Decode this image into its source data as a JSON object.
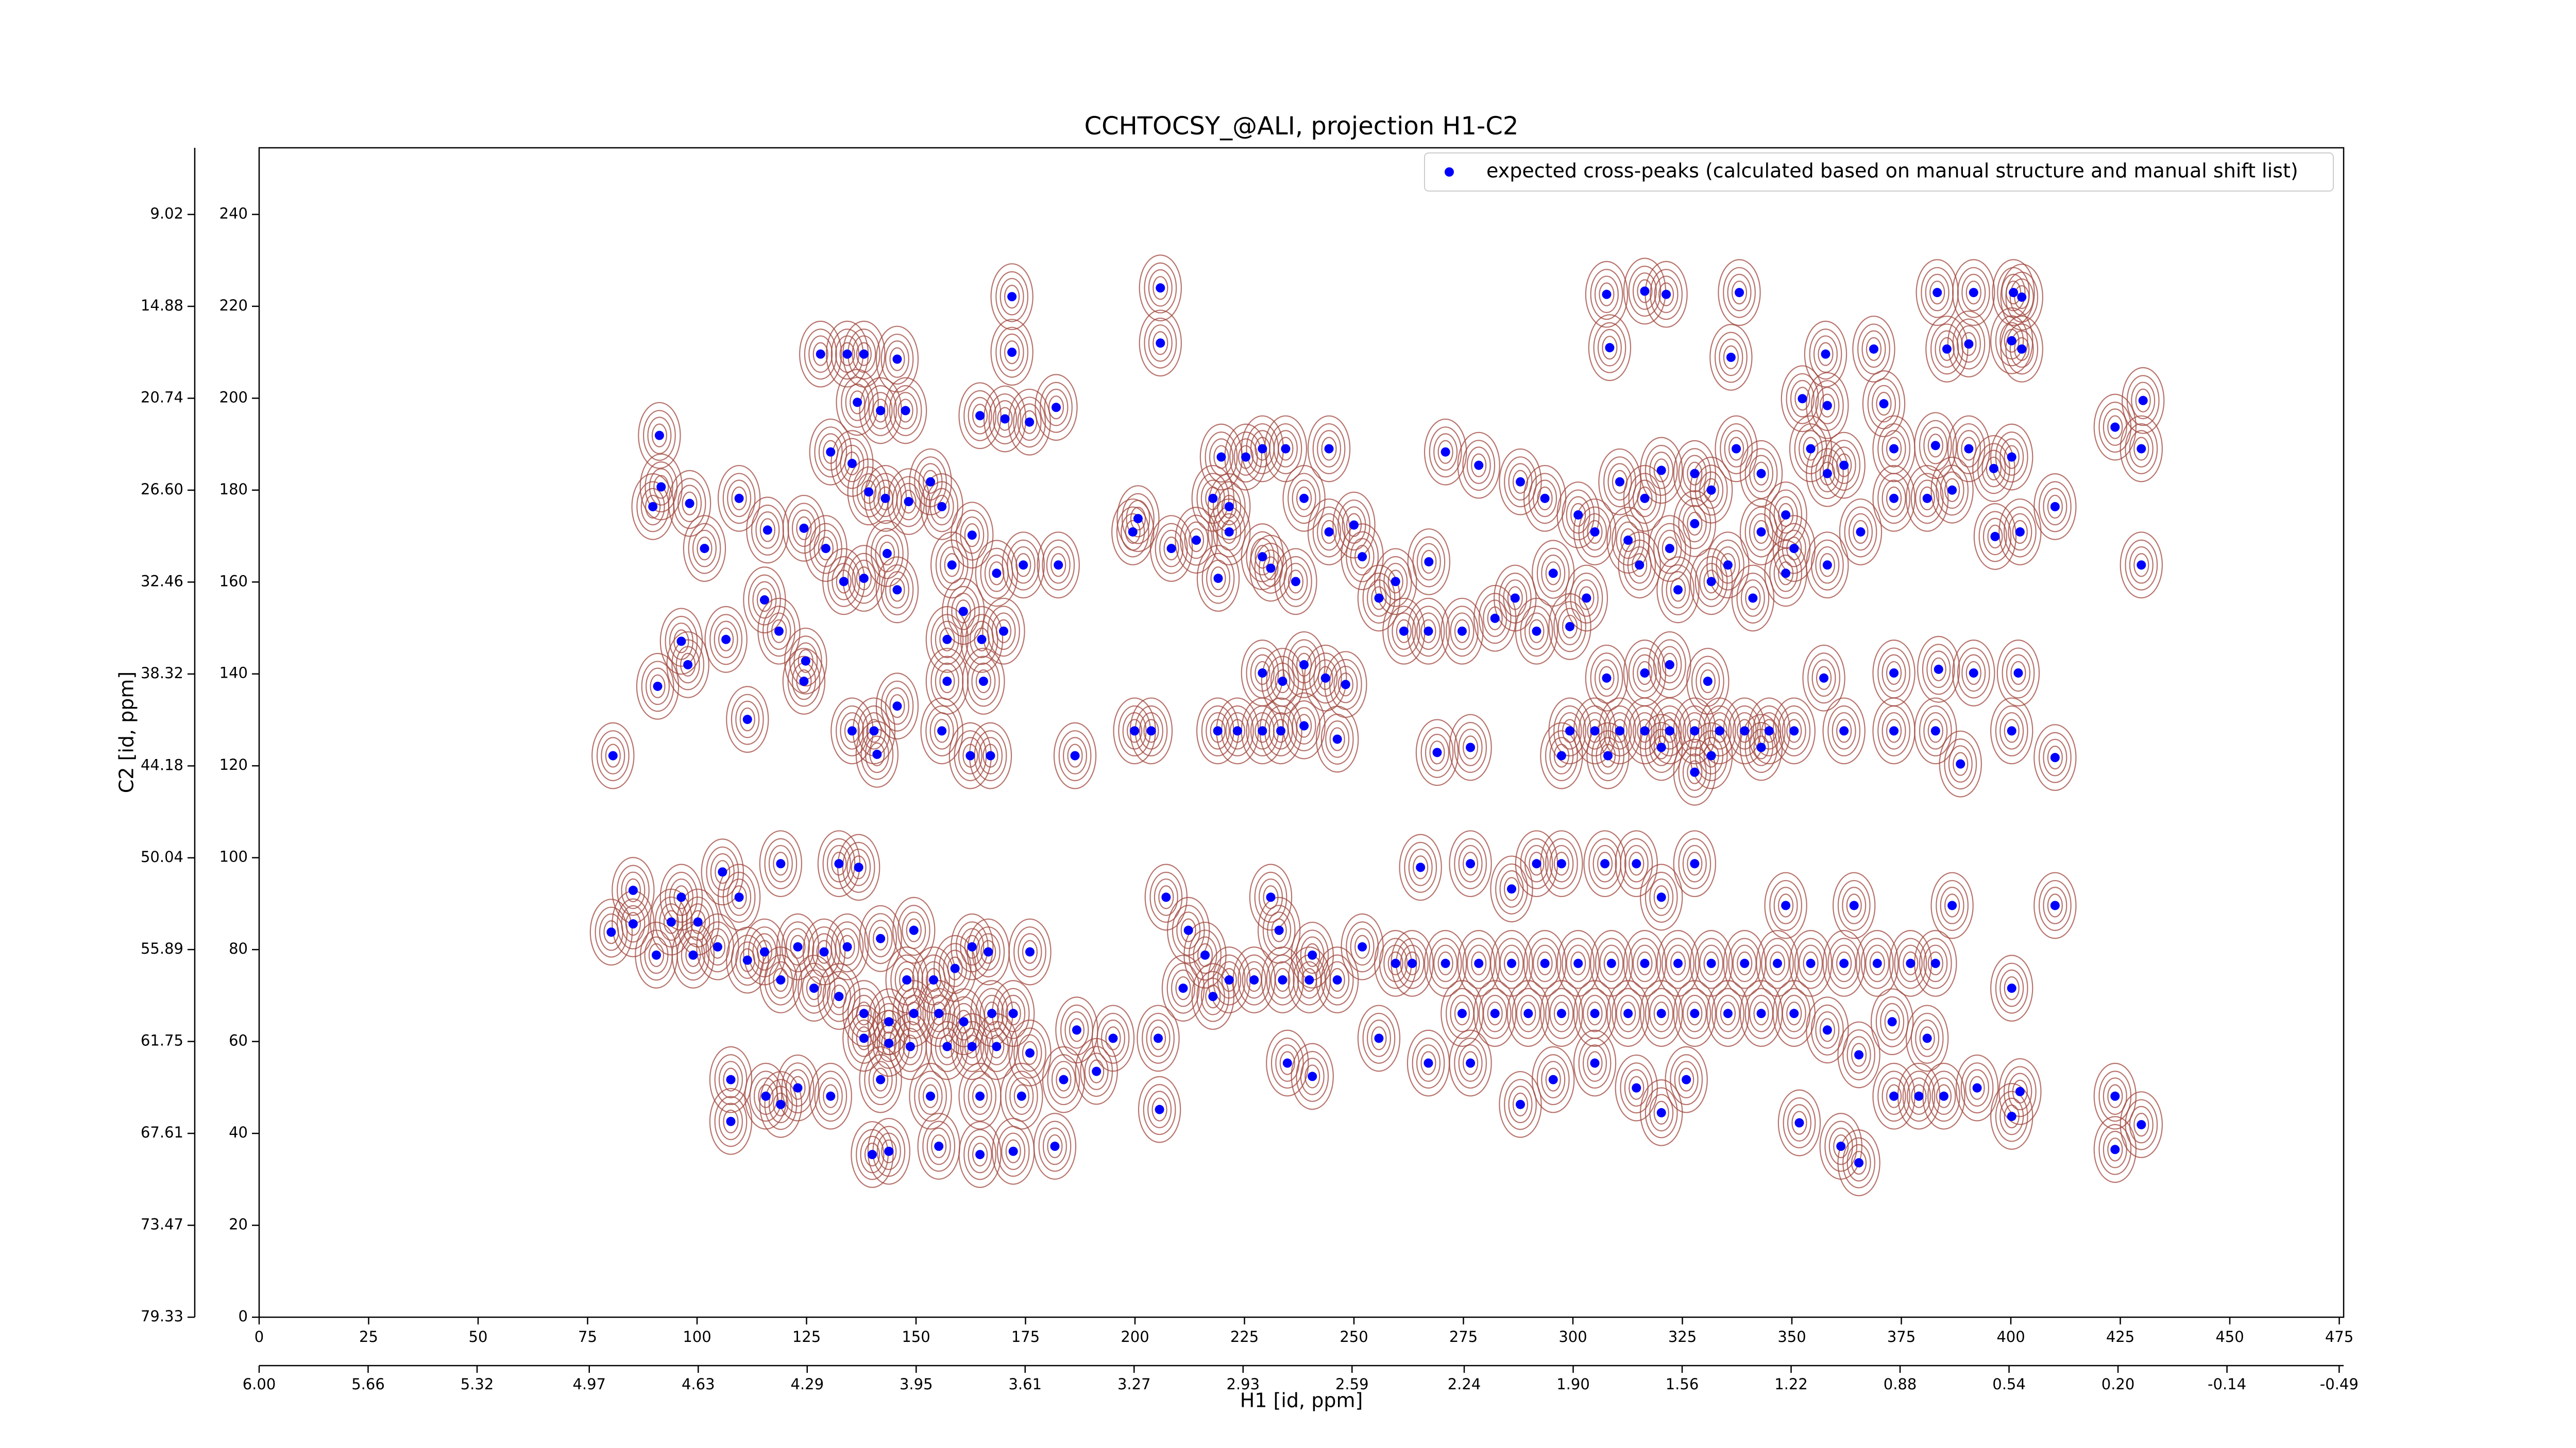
{
  "chart_data": {
    "type": "scatter",
    "title": "CCHTOCSY_@ALI, projection H1-C2",
    "xlabel": "H1 [id, ppm]",
    "ylabel": "C2 [id, ppm]",
    "legend": "upper right",
    "xlim": [
      0,
      476
    ],
    "xticks": [
      0,
      25,
      50,
      75,
      100,
      125,
      150,
      175,
      200,
      225,
      250,
      275,
      300,
      325,
      350,
      375,
      400,
      425,
      450,
      475
    ],
    "x2lim": [
      6.0,
      -0.504
    ],
    "x2ticks": [
      {
        "value": 6,
        "label": "6.00"
      },
      5.66,
      5.32,
      4.97,
      4.63,
      4.29,
      3.95,
      3.61,
      3.27,
      2.93,
      2.59,
      2.24,
      {
        "value": 1.9,
        "label": "1.90"
      },
      1.56,
      1.22,
      0.88,
      0.54,
      {
        "value": 0.2,
        "label": "0.20"
      },
      -0.14,
      -0.49
    ],
    "ylim": [
      0,
      254.5
    ],
    "yticks": [
      0,
      20,
      40,
      60,
      80,
      100,
      120,
      140,
      160,
      180,
      200,
      220,
      240
    ],
    "y2lim": [
      79.33,
      4.77
    ],
    "y2ticks": [
      79.33,
      73.47,
      67.61,
      61.75,
      55.89,
      50.04,
      44.18,
      38.32,
      32.46,
      {
        "value": 26.6,
        "label": "26.60"
      },
      20.74,
      14.88,
      9.02
    ],
    "series": [
      {
        "name": "expected cross-peaks (calculated based on manual structure and manual shift list)",
        "color": "#0000ff",
        "x": [
          171.9,
          205.8,
          205.8,
          171.9,
          128.2,
          134.3,
          138.1,
          145.7,
          307.7,
          316.4,
          321.3,
          338,
          383.2,
          391.5,
          400.6,
          402.5,
          336.1,
          357.7,
          368.7,
          385.4,
          390.4,
          400.2,
          402.5,
          308.4,
          352.4,
          358.1,
          371,
          430.2,
          423.8,
          429.8,
          429.8,
          410.1,
          396.4,
          91.4,
          91.8,
          89.9,
          98.3,
          101.7,
          96.4,
          97.9,
          91,
          80.8,
          85.4,
          80.4,
          90.7,
          85.4,
          116.1,
          115.4,
          118.7,
          109.6,
          124.4,
          124.8,
          111.5,
          106.6,
          136.6,
          141.9,
          147.6,
          130.5,
          135.4,
          139.2,
          143,
          148.3,
          153.3,
          155.9,
          143.4,
          145.7,
          138.1,
          133.5,
          129.4,
          124.4,
          164.6,
          170.3,
          175.9,
          182,
          162.8,
          168.4,
          174.5,
          182.5,
          158.2,
          160.8,
          157.1,
          165,
          170,
          157.1,
          165.4,
          145.7,
          140.4,
          135.4,
          155.9,
          167,
          162.4,
          141.1,
          186.3,
          199.5,
          200.7,
          208.3,
          214,
          221.5,
          229.1,
          231,
          219,
          236.7,
          219.7,
          225.3,
          229.1,
          234.4,
          244.3,
          217.8,
          221.5,
          238.6,
          244.3,
          250,
          251.9,
          259.5,
          267.1,
          255.7,
          261.4,
          267,
          274.7,
          282.2,
          286.8,
          291.7,
          299.3,
          229.1,
          233.7,
          238.6,
          243.5,
          248.1,
          218.9,
          223.4,
          229.1,
          233.3,
          238.6,
          246.2,
          199.9,
          203.7,
          270.9,
          278.5,
          288,
          293.6,
          301.2,
          310.7,
          316.4,
          320.2,
          327.8,
          331.6,
          337.3,
          343,
          348.6,
          354.3,
          358.1,
          361.9,
          305,
          312.6,
          322.1,
          327.8,
          335.4,
          343,
          350.5,
          358.1,
          365.7,
          373.3,
          380.9,
          386.6,
          396.1,
          390.4,
          400.2,
          402.1,
          373.3,
          382.8,
          295.5,
          303.1,
          315.2,
          324,
          331.6,
          341.1,
          348.6,
          307.7,
          316.4,
          322.1,
          330.8,
          357.3,
          373.3,
          383.5,
          391.5,
          401.7,
          299.3,
          305,
          310.7,
          316.4,
          322.1,
          327.8,
          333.5,
          339.2,
          344.8,
          350.5,
          361.9,
          373.3,
          382.8,
          297.4,
          308,
          320.2,
          331.6,
          343,
          388.5,
          410.1,
          400.2,
          327.8,
          269,
          276.6,
          105.8,
          109.6,
          119.1,
          132.4,
          136.9,
          96.4,
          94.1,
          100.2,
          99.1,
          104.7,
          111.5,
          115.4,
          123,
          129,
          134.3,
          141.9,
          149.5,
          147.9,
          154,
          158.9,
          162.8,
          166.5,
          176,
          119.1,
          126.7,
          132.4,
          138.1,
          143.8,
          149.5,
          155.2,
          160.9,
          167.3,
          172.2,
          138.1,
          143.8,
          148.7,
          157.1,
          162.8,
          168.4,
          176,
          186.7,
          195,
          205.3,
          107.7,
          115.7,
          123,
          130.5,
          141.9,
          153.3,
          164.6,
          174.1,
          183.7,
          191.2,
          107.7,
          119.1,
          140,
          143.8,
          155.2,
          164.6,
          172.2,
          181.7,
          205.6,
          207.1,
          212.2,
          216,
          221.5,
          227.2,
          233.7,
          239.8,
          217.8,
          211,
          231,
          232.9,
          240.5,
          246.2,
          251.9,
          259.5,
          265.2,
          276.6,
          286,
          291.7,
          297.4,
          307.3,
          314.5,
          320.2,
          327.8,
          348.6,
          364.2,
          386.6,
          410.1,
          263.3,
          270.9,
          278.5,
          286,
          293.6,
          301.2,
          308.8,
          316.4,
          324,
          331.6,
          339.2,
          346.7,
          354.3,
          361.9,
          369.5,
          377.1,
          382.8,
          274.7,
          282.2,
          289.8,
          297.4,
          305,
          312.6,
          320.2,
          327.8,
          335.4,
          343,
          350.5,
          358.1,
          365.3,
          372.9,
          380.9,
          400.2,
          255.7,
          240.5,
          234.8,
          267,
          276.6,
          288,
          295.5,
          305,
          314.5,
          320.2,
          325.9,
          351.7,
          361.2,
          365.3,
          373.3,
          379,
          384.7,
          392.3,
          400.2,
          402.1,
          423.8,
          423.8,
          429.8
        ],
        "values": [
          222.1,
          224,
          212,
          210,
          209.6,
          209.6,
          209.6,
          208.5,
          222.6,
          223.3,
          222.6,
          223,
          223,
          223,
          223,
          222,
          208.9,
          209.6,
          210.7,
          210.7,
          211.8,
          212.5,
          210.7,
          211,
          199.9,
          198.4,
          198.8,
          199.5,
          193.7,
          189,
          163.7,
          176.4,
          169.9,
          191.9,
          180.7,
          176.4,
          177.1,
          167.3,
          147.1,
          142,
          137.3,
          122.2,
          92.9,
          83.8,
          78.8,
          85.6,
          171.3,
          156.1,
          149.3,
          178.2,
          138.4,
          142.8,
          130.1,
          147.5,
          199.1,
          197.3,
          197.3,
          188.3,
          185.8,
          179.6,
          178.2,
          177.5,
          181.8,
          176.4,
          166.2,
          158.3,
          160.8,
          160.1,
          167.3,
          171.7,
          196.2,
          195.5,
          194.8,
          198,
          170.2,
          161.9,
          163.7,
          163.7,
          163.7,
          153.6,
          147.5,
          147.5,
          149.3,
          138.4,
          138.4,
          133,
          127.6,
          127.6,
          127.6,
          122.2,
          122.2,
          122.5,
          122.2,
          170.9,
          173.8,
          167.3,
          169.1,
          170.9,
          165.5,
          163,
          160.8,
          160.1,
          187.2,
          187.2,
          189,
          189,
          189,
          178.2,
          176.4,
          178.2,
          170.9,
          172.4,
          165.5,
          160.1,
          164.4,
          156.5,
          149.3,
          149.3,
          149.3,
          152.1,
          156.5,
          149.3,
          150.3,
          140.2,
          138.4,
          142,
          139.1,
          137.7,
          127.6,
          127.6,
          127.6,
          127.6,
          128.7,
          125.8,
          127.6,
          127.6,
          188.3,
          185.4,
          181.8,
          178.2,
          174.6,
          181.8,
          178.2,
          184.3,
          183.6,
          180,
          189,
          183.6,
          174.6,
          189,
          183.6,
          185.4,
          170.9,
          169.1,
          167.3,
          172.7,
          163.7,
          170.9,
          167.3,
          163.7,
          170.9,
          178.2,
          178.2,
          180,
          184.7,
          189,
          187.2,
          170.9,
          189,
          189.7,
          161.9,
          156.5,
          163.7,
          158.3,
          160.1,
          156.5,
          161.9,
          139.1,
          140.2,
          142,
          138.4,
          139.1,
          140.2,
          141,
          140.2,
          140.2,
          127.6,
          127.6,
          127.6,
          127.6,
          127.6,
          127.6,
          127.6,
          127.6,
          127.6,
          127.6,
          127.6,
          127.6,
          127.6,
          122.2,
          122.2,
          124,
          122.2,
          124,
          120.4,
          121.8,
          127.6,
          118.6,
          122.9,
          124,
          96.9,
          91.4,
          98.7,
          98.7,
          97.9,
          91.4,
          86,
          86,
          78.8,
          80.6,
          77.7,
          79.5,
          80.6,
          79.5,
          80.6,
          82.4,
          84.2,
          73.4,
          73.4,
          75.9,
          80.6,
          79.5,
          79.5,
          73.4,
          71.6,
          69.8,
          66.1,
          64.3,
          66.1,
          66.1,
          64.3,
          66.1,
          66.1,
          60.7,
          59.6,
          58.9,
          58.9,
          58.9,
          58.9,
          57.5,
          62.5,
          60.7,
          60.7,
          51.7,
          48.1,
          49.9,
          48.1,
          51.7,
          48.1,
          48.1,
          48.1,
          51.7,
          53.5,
          42.6,
          46.3,
          35.4,
          36.1,
          37.2,
          35.4,
          36.1,
          37.2,
          45.2,
          91.4,
          84.2,
          78.8,
          73.4,
          73.4,
          73.4,
          73.4,
          69.8,
          71.6,
          91.4,
          84.2,
          78.8,
          73.4,
          80.6,
          77,
          97.9,
          98.7,
          93.2,
          98.7,
          98.7,
          98.7,
          98.7,
          91.4,
          98.7,
          89.6,
          89.6,
          89.6,
          89.6,
          77,
          77,
          77,
          77,
          77,
          77,
          77,
          77,
          77,
          77,
          77,
          77,
          77,
          77,
          77,
          77,
          77,
          66.1,
          66.1,
          66.1,
          66.1,
          66.1,
          66.1,
          66.1,
          66.1,
          66.1,
          66.1,
          66.1,
          62.5,
          57.1,
          64.3,
          60.7,
          71.6,
          60.7,
          52.4,
          55.3,
          55.3,
          55.3,
          46.3,
          51.7,
          55.3,
          49.9,
          44.5,
          51.7,
          42.3,
          37.2,
          33.6,
          48.1,
          48.1,
          48.1,
          49.9,
          43.7,
          49.1,
          48.1,
          36.5,
          41.9
        ]
      }
    ]
  }
}
